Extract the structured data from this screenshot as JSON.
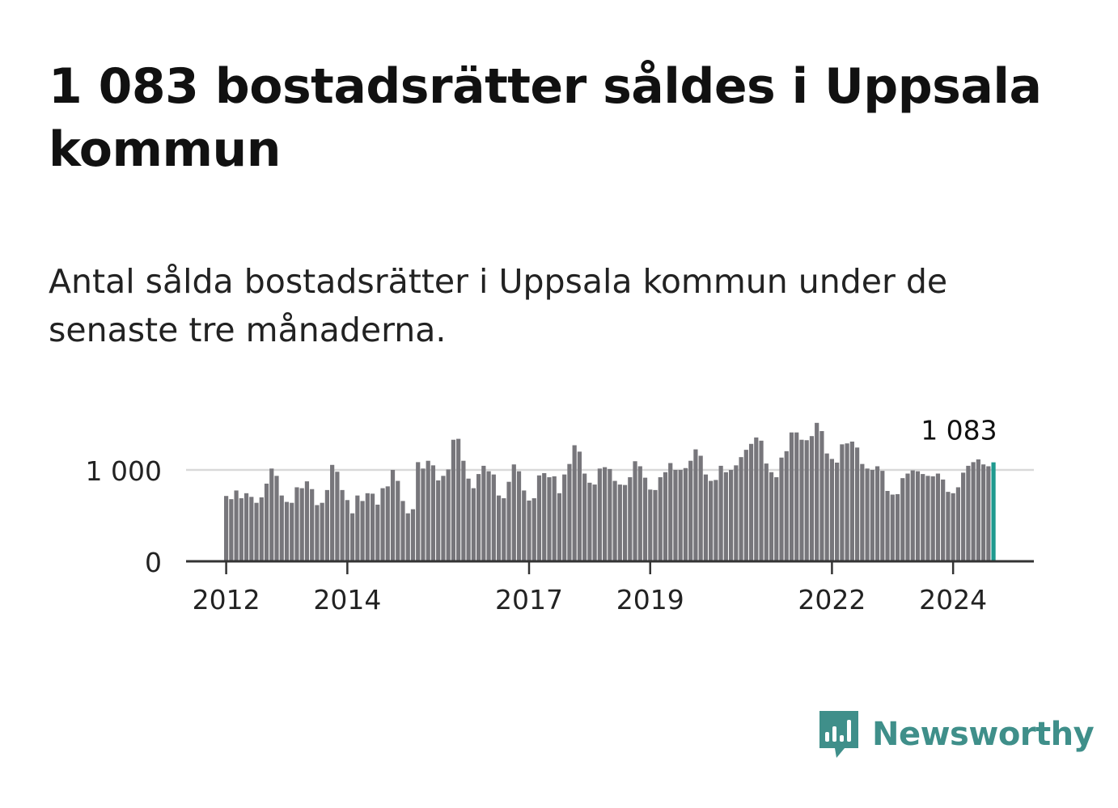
{
  "headline": "1 083 bostadsrätter såldes i Uppsala kommun",
  "subtitle": "Antal sålda bostadsrätter i Uppsala kommun under de senaste tre månaderna.",
  "brand": {
    "name": "Newsworthy",
    "icon": "newsworthy-chart-bubble-icon",
    "color": "#3f8f8a"
  },
  "colors": {
    "bar": "#77767b",
    "highlight": "#1f9a8f",
    "grid": "#d9d9d9",
    "axis": "#333333",
    "text": "#222222"
  },
  "chart_data": {
    "type": "bar",
    "x_start": "2012-01",
    "x_end": "2024-09",
    "x_interval": "month",
    "values": [
      715,
      680,
      775,
      690,
      745,
      705,
      640,
      700,
      850,
      1015,
      935,
      720,
      650,
      640,
      810,
      800,
      875,
      790,
      615,
      640,
      780,
      1055,
      980,
      780,
      670,
      525,
      720,
      660,
      745,
      740,
      620,
      800,
      820,
      1000,
      880,
      660,
      525,
      570,
      1085,
      1015,
      1100,
      1050,
      885,
      935,
      1005,
      1330,
      1340,
      1100,
      905,
      800,
      955,
      1045,
      985,
      950,
      720,
      690,
      870,
      1060,
      985,
      775,
      665,
      690,
      940,
      965,
      920,
      930,
      745,
      950,
      1065,
      1270,
      1200,
      960,
      860,
      840,
      1015,
      1030,
      1010,
      880,
      840,
      835,
      920,
      1095,
      1040,
      915,
      785,
      780,
      920,
      975,
      1075,
      1000,
      1000,
      1020,
      1100,
      1225,
      1155,
      950,
      880,
      890,
      1045,
      975,
      1000,
      1050,
      1140,
      1220,
      1285,
      1355,
      1320,
      1070,
      975,
      920,
      1135,
      1205,
      1410,
      1410,
      1330,
      1325,
      1370,
      1515,
      1425,
      1180,
      1120,
      1080,
      1280,
      1290,
      1310,
      1245,
      1065,
      1015,
      1000,
      1040,
      990,
      770,
      730,
      735,
      910,
      960,
      995,
      985,
      955,
      935,
      930,
      960,
      895,
      760,
      745,
      810,
      970,
      1045,
      1085,
      1115,
      1060,
      1040,
      1083
    ],
    "highlight_last": true,
    "highlight_label": "1 083",
    "yticks": [
      {
        "value": 0,
        "label": "0"
      },
      {
        "value": 1000,
        "label": "1 000"
      }
    ],
    "xticks": [
      {
        "date": "2012-01",
        "label": "2012"
      },
      {
        "date": "2014-01",
        "label": "2014"
      },
      {
        "date": "2017-01",
        "label": "2017"
      },
      {
        "date": "2019-01",
        "label": "2019"
      },
      {
        "date": "2022-01",
        "label": "2022"
      },
      {
        "date": "2024-01",
        "label": "2024"
      }
    ],
    "grid": true
  }
}
